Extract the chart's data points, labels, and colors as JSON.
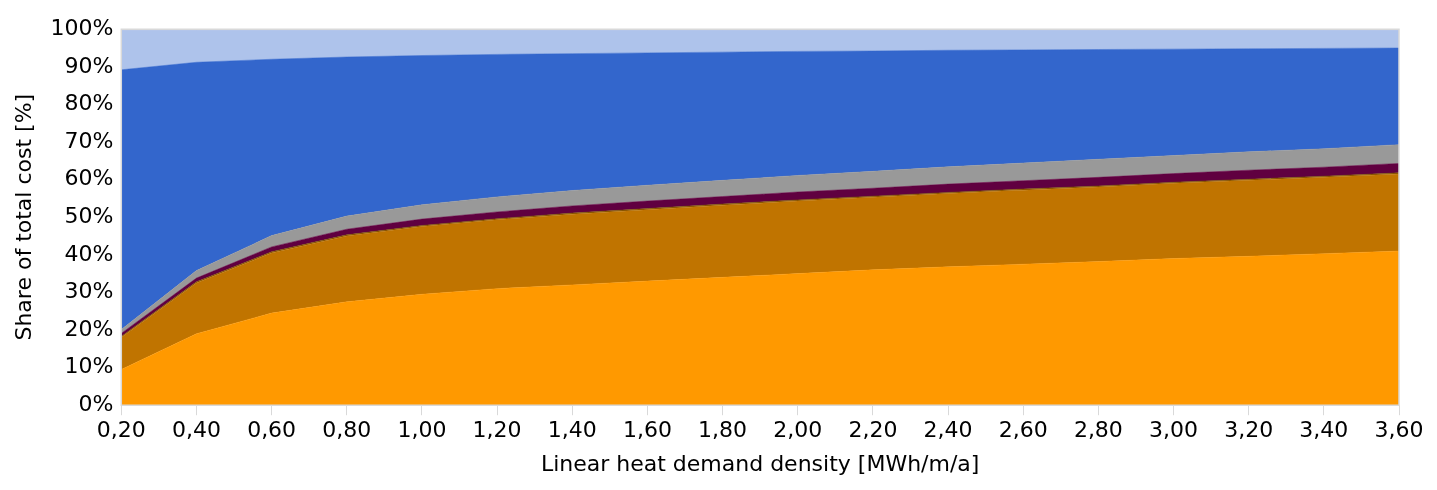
{
  "chart_data": {
    "type": "area",
    "stacked": true,
    "xlabel": "Linear heat demand density [MWh/m/a]",
    "ylabel": "Share of total cost [%]",
    "categories": [
      "0,20",
      "0,40",
      "0,60",
      "0,80",
      "1,00",
      "1,20",
      "1,40",
      "1,60",
      "1,80",
      "2,00",
      "2,20",
      "2,40",
      "2,60",
      "2,80",
      "3,00",
      "3,20",
      "3,40",
      "3,60"
    ],
    "ylim": [
      0,
      100
    ],
    "yticks": [
      {
        "value": 0,
        "label": "0%"
      },
      {
        "value": 10,
        "label": "10%"
      },
      {
        "value": 20,
        "label": "20%"
      },
      {
        "value": 30,
        "label": "30%"
      },
      {
        "value": 40,
        "label": "40%"
      },
      {
        "value": 50,
        "label": "50%"
      },
      {
        "value": 60,
        "label": "60%"
      },
      {
        "value": 70,
        "label": "70%"
      },
      {
        "value": 80,
        "label": "80%"
      },
      {
        "value": 90,
        "label": "90%"
      },
      {
        "value": 100,
        "label": "100%"
      }
    ],
    "series": [
      {
        "color": "#ff9900",
        "values": [
          9.5,
          19,
          24.5,
          27.5,
          29.5,
          31,
          32,
          33,
          34,
          35,
          36,
          36.8,
          37.5,
          38.2,
          39,
          39.6,
          40.3,
          41
        ]
      },
      {
        "color": "#c07400",
        "values": [
          8.5,
          13.5,
          16,
          17.5,
          18,
          18.3,
          18.8,
          19,
          19.2,
          19.3,
          19.3,
          19.5,
          19.7,
          19.8,
          20,
          20.2,
          20.3,
          20.5
        ]
      },
      {
        "color": "#7f5000",
        "values": [
          0.3,
          0.3,
          0.3,
          0.3,
          0.3,
          0.3,
          0.3,
          0.3,
          0.3,
          0.3,
          0.3,
          0.3,
          0.3,
          0.3,
          0.3,
          0.3,
          0.3,
          0.3
        ]
      },
      {
        "color": "#600040",
        "values": [
          0.8,
          1,
          1.3,
          1.5,
          1.7,
          1.8,
          1.9,
          2,
          2,
          2.1,
          2.1,
          2.2,
          2.2,
          2.3,
          2.3,
          2.4,
          2.4,
          2.5
        ]
      },
      {
        "color": "#999999",
        "values": [
          1,
          2,
          3,
          3.5,
          3.8,
          4,
          4.1,
          4.2,
          4.3,
          4.4,
          4.5,
          4.6,
          4.7,
          4.8,
          4.8,
          4.9,
          4.9,
          5
        ]
      },
      {
        "color": "#3366cc",
        "values": [
          69.1,
          55.4,
          46.9,
          42.3,
          39.7,
          37.9,
          36.4,
          35.2,
          34.1,
          33,
          32,
          31,
          30.1,
          29.2,
          28.3,
          27.4,
          26.7,
          25.7
        ]
      },
      {
        "color": "#aec3eb",
        "values": [
          10.5,
          8.5,
          7.7,
          7.1,
          6.7,
          6.4,
          6.2,
          6,
          5.8,
          5.6,
          5.5,
          5.3,
          5.2,
          5.1,
          5,
          4.9,
          4.8,
          4.7
        ]
      },
      {
        "color": "#264d99",
        "values": [
          0.3,
          0.3,
          0.3,
          0.3,
          0.3,
          0.3,
          0.3,
          0.3,
          0.3,
          0.3,
          0.3,
          0.3,
          0.3,
          0.3,
          0.3,
          0.3,
          0.3,
          0.3
        ]
      }
    ]
  }
}
